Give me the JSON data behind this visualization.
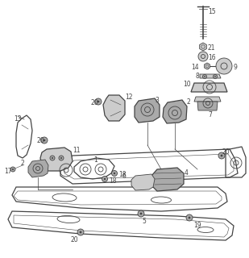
{
  "bg_color": "#ffffff",
  "line_color": "#444444",
  "gray_light": "#cccccc",
  "gray_mid": "#aaaaaa",
  "gray_dark": "#888888",
  "fig_width": 3.09,
  "fig_height": 3.2,
  "dpi": 100
}
